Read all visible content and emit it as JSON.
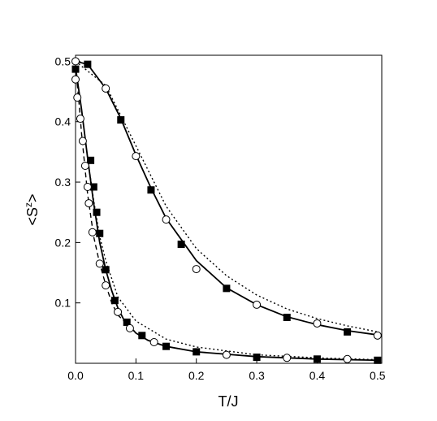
{
  "chart_data": {
    "type": "line",
    "xlabel": "T/J",
    "ylabel": [
      "<S",
      "z",
      ">"
    ],
    "xlim": [
      0,
      0.507
    ],
    "ylim": [
      0,
      0.51
    ],
    "xticks": [
      {
        "value": 0,
        "label": "0.0"
      },
      0.1,
      0.2,
      0.3,
      0.4,
      0.5
    ],
    "yticks": [
      0.1,
      0.2,
      0.3,
      0.4,
      0.5
    ],
    "series": [
      {
        "mode": "line",
        "dash": "solid",
        "color": "#000000",
        "x": [
          0,
          0.02,
          0.05,
          0.075,
          0.1,
          0.125,
          0.15,
          0.2,
          0.25,
          0.3,
          0.35,
          0.4,
          0.45,
          0.5
        ],
        "values": [
          0.5,
          0.495,
          0.455,
          0.405,
          0.345,
          0.29,
          0.24,
          0.17,
          0.125,
          0.097,
          0.077,
          0.064,
          0.054,
          0.047
        ]
      },
      {
        "mode": "line",
        "dash": "dotted",
        "color": "#000000",
        "x": [
          0,
          0.05,
          0.1,
          0.15,
          0.2,
          0.25,
          0.3,
          0.35,
          0.4,
          0.45,
          0.5
        ],
        "values": [
          0.5,
          0.46,
          0.36,
          0.26,
          0.19,
          0.145,
          0.113,
          0.09,
          0.074,
          0.062,
          0.052
        ]
      },
      {
        "mode": "line",
        "dash": "solid",
        "color": "#000000",
        "x": [
          0,
          0.01,
          0.02,
          0.03,
          0.04,
          0.05,
          0.06,
          0.07,
          0.08,
          0.1,
          0.12,
          0.15,
          0.2,
          0.3,
          0.4,
          0.5
        ],
        "values": [
          0.49,
          0.42,
          0.34,
          0.265,
          0.2,
          0.155,
          0.12,
          0.092,
          0.072,
          0.05,
          0.038,
          0.028,
          0.019,
          0.011,
          0.007,
          0.005
        ]
      },
      {
        "mode": "line",
        "dash": "dotted",
        "color": "#000000",
        "x": [
          0.02,
          0.03,
          0.04,
          0.05,
          0.07,
          0.1,
          0.15,
          0.2,
          0.3,
          0.4,
          0.5
        ],
        "values": [
          0.34,
          0.27,
          0.21,
          0.17,
          0.11,
          0.07,
          0.04,
          0.027,
          0.014,
          0.009,
          0.006
        ]
      },
      {
        "mode": "line",
        "dash": "dashed",
        "color": "#000000",
        "x": [
          0,
          0.005,
          0.01,
          0.02,
          0.03,
          0.04,
          0.05,
          0.06,
          0.07,
          0.08
        ],
        "values": [
          0.49,
          0.44,
          0.38,
          0.28,
          0.21,
          0.165,
          0.13,
          0.1,
          0.08,
          0.07
        ]
      },
      {
        "mode": "marker",
        "marker": "square",
        "color": "#000000",
        "x": [
          0.02,
          0.075,
          0.125,
          0.175,
          0.25,
          0.35,
          0.45
        ],
        "values": [
          0.495,
          0.403,
          0.287,
          0.197,
          0.124,
          0.076,
          0.052
        ]
      },
      {
        "mode": "marker",
        "marker": "square",
        "color": "#000000",
        "x": [
          0,
          0.025,
          0.03,
          0.035,
          0.04,
          0.05,
          0.065,
          0.085,
          0.11,
          0.15,
          0.2,
          0.3,
          0.4,
          0.5
        ],
        "values": [
          0.487,
          0.336,
          0.292,
          0.25,
          0.215,
          0.155,
          0.104,
          0.068,
          0.046,
          0.028,
          0.019,
          0.01,
          0.007,
          0.005
        ]
      },
      {
        "mode": "marker",
        "marker": "circle",
        "color": "#000000",
        "x": [
          0,
          0.05,
          0.1,
          0.15,
          0.2,
          0.3,
          0.4,
          0.5
        ],
        "values": [
          0.5,
          0.455,
          0.343,
          0.238,
          0.156,
          0.097,
          0.066,
          0.046
        ]
      },
      {
        "mode": "marker",
        "marker": "circle",
        "color": "#000000",
        "x": [
          0,
          0.003,
          0.008,
          0.012,
          0.016,
          0.02,
          0.022,
          0.028,
          0.04,
          0.05,
          0.07,
          0.09,
          0.13,
          0.25,
          0.35,
          0.45
        ],
        "values": [
          0.47,
          0.44,
          0.405,
          0.368,
          0.327,
          0.292,
          0.265,
          0.217,
          0.165,
          0.129,
          0.085,
          0.058,
          0.035,
          0.014,
          0.009,
          0.007
        ]
      }
    ]
  }
}
